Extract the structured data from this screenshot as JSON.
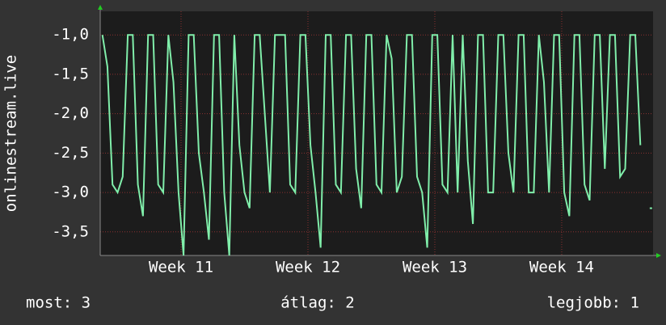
{
  "chart_data": {
    "type": "line",
    "ylabel": "onlinestream.live",
    "x": [
      10.38,
      10.42,
      10.46,
      10.5,
      10.54,
      10.58,
      10.62,
      10.66,
      10.7,
      10.74,
      10.78,
      10.82,
      10.86,
      10.9,
      10.94,
      10.98,
      11.02,
      11.06,
      11.1,
      11.14,
      11.18,
      11.22,
      11.26,
      11.3,
      11.34,
      11.38,
      11.42,
      11.46,
      11.5,
      11.54,
      11.58,
      11.62,
      11.66,
      11.7,
      11.74,
      11.78,
      11.82,
      11.86,
      11.9,
      11.94,
      11.98,
      12.02,
      12.06,
      12.1,
      12.14,
      12.18,
      12.22,
      12.26,
      12.3,
      12.34,
      12.38,
      12.42,
      12.46,
      12.5,
      12.54,
      12.58,
      12.62,
      12.66,
      12.7,
      12.74,
      12.78,
      12.82,
      12.86,
      12.9,
      12.94,
      12.98,
      13.02,
      13.06,
      13.1,
      13.14,
      13.18,
      13.22,
      13.26,
      13.3,
      13.34,
      13.38,
      13.42,
      13.46,
      13.5,
      13.54,
      13.58,
      13.62,
      13.66,
      13.7,
      13.74,
      13.78,
      13.82,
      13.86,
      13.9,
      13.94,
      13.98,
      14.02,
      14.06,
      14.1,
      14.14,
      14.18,
      14.22,
      14.26,
      14.3,
      14.34,
      14.38,
      14.42,
      14.46,
      14.5,
      14.54,
      14.58,
      14.62,
      14.66,
      14.7
    ],
    "series": [
      {
        "color": "#80eeaa",
        "values": [
          -1.0,
          -1.4,
          -2.9,
          -3.0,
          -2.8,
          -1.0,
          -1.0,
          -2.9,
          -3.3,
          -1.0,
          -1.0,
          -2.9,
          -3.0,
          -1.0,
          -1.6,
          -3.0,
          -3.8,
          -1.0,
          -1.0,
          -2.5,
          -3.0,
          -3.6,
          -1.0,
          -1.0,
          -3.0,
          -3.8,
          -1.0,
          -2.4,
          -3.0,
          -3.2,
          -1.0,
          -1.0,
          -2.0,
          -3.0,
          -1.0,
          -1.0,
          -1.0,
          -2.9,
          -3.0,
          -1.0,
          -1.0,
          -2.4,
          -3.0,
          -3.7,
          -1.0,
          -1.0,
          -2.9,
          -3.0,
          -1.0,
          -1.0,
          -2.7,
          -3.2,
          -1.0,
          -1.0,
          -2.9,
          -3.0,
          -1.0,
          -1.3,
          -3.0,
          -2.8,
          -1.0,
          -1.0,
          -2.8,
          -3.0,
          -3.7,
          -1.0,
          -1.0,
          -2.9,
          -3.0,
          -1.0,
          -3.0,
          -1.0,
          -2.6,
          -3.4,
          -1.0,
          -1.0,
          -3.0,
          -3.0,
          -1.0,
          -1.0,
          -2.5,
          -3.0,
          -1.0,
          -1.0,
          -3.0,
          -3.0,
          -1.0,
          -1.6,
          -3.0,
          -1.0,
          -1.0,
          -3.0,
          -3.3,
          -1.0,
          -1.0,
          -2.9,
          -3.1,
          -1.0,
          -1.0,
          -2.7,
          -1.0,
          -1.0,
          -2.8,
          -2.7,
          -1.0,
          -1.0,
          -2.4,
          null,
          -3.2
        ]
      }
    ],
    "xlim": [
      10.363,
      14.72
    ],
    "xticks": [
      {
        "value": 11,
        "label": "Week 11"
      },
      {
        "value": 12,
        "label": "Week 12"
      },
      {
        "value": 13,
        "label": "Week 13"
      },
      {
        "value": 14,
        "label": "Week 14"
      }
    ],
    "ylim": [
      -3.8,
      -0.7
    ],
    "yticks": [
      {
        "value": -3.5,
        "label": "-3,5"
      },
      {
        "value": -3.0,
        "label": "-3,0"
      },
      {
        "value": -2.5,
        "label": "-2,5"
      },
      {
        "value": -2.0,
        "label": "-2,0"
      },
      {
        "value": -1.5,
        "label": "-1,5"
      },
      {
        "value": -1.0,
        "label": "-1,0"
      }
    ],
    "grid": true,
    "footer": [
      "most: 3",
      "átlag: 2",
      "legjobb: 1"
    ]
  }
}
